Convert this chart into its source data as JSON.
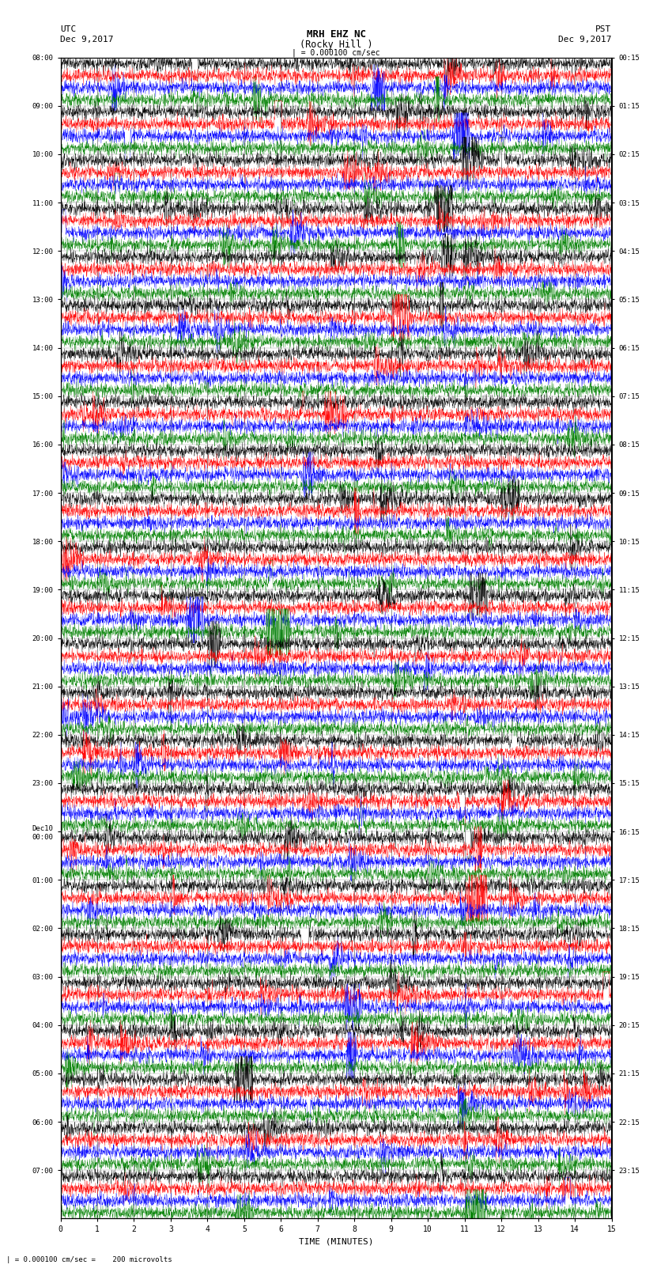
{
  "title_line1": "MRH EHZ NC",
  "title_line2": "(Rocky Hill )",
  "scale_label": "= 0.000100 cm/sec",
  "bottom_label": "= 0.000100 cm/sec =    200 microvolts",
  "xlabel": "TIME (MINUTES)",
  "utc_label": "UTC",
  "utc_date": "Dec 9,2017",
  "pst_label": "PST",
  "pst_date": "Dec 9,2017",
  "left_times": [
    "08:00",
    "09:00",
    "10:00",
    "11:00",
    "12:00",
    "13:00",
    "14:00",
    "15:00",
    "16:00",
    "17:00",
    "18:00",
    "19:00",
    "20:00",
    "21:00",
    "22:00",
    "23:00",
    "Dec10\n00:00",
    "01:00",
    "02:00",
    "03:00",
    "04:00",
    "05:00",
    "06:00",
    "07:00"
  ],
  "right_times": [
    "00:15",
    "01:15",
    "02:15",
    "03:15",
    "04:15",
    "05:15",
    "06:15",
    "07:15",
    "08:15",
    "09:15",
    "10:15",
    "11:15",
    "12:15",
    "13:15",
    "14:15",
    "15:15",
    "16:15",
    "17:15",
    "18:15",
    "19:15",
    "20:15",
    "21:15",
    "22:15",
    "23:15"
  ],
  "colors": [
    "black",
    "red",
    "blue",
    "green"
  ],
  "background": "white",
  "n_rows": 24,
  "traces_per_row": 4,
  "minutes": 15,
  "fig_width": 8.5,
  "fig_height": 16.13,
  "dpi": 100,
  "amplitude_scale": 0.32,
  "noise_base": 0.07,
  "seed": 42
}
